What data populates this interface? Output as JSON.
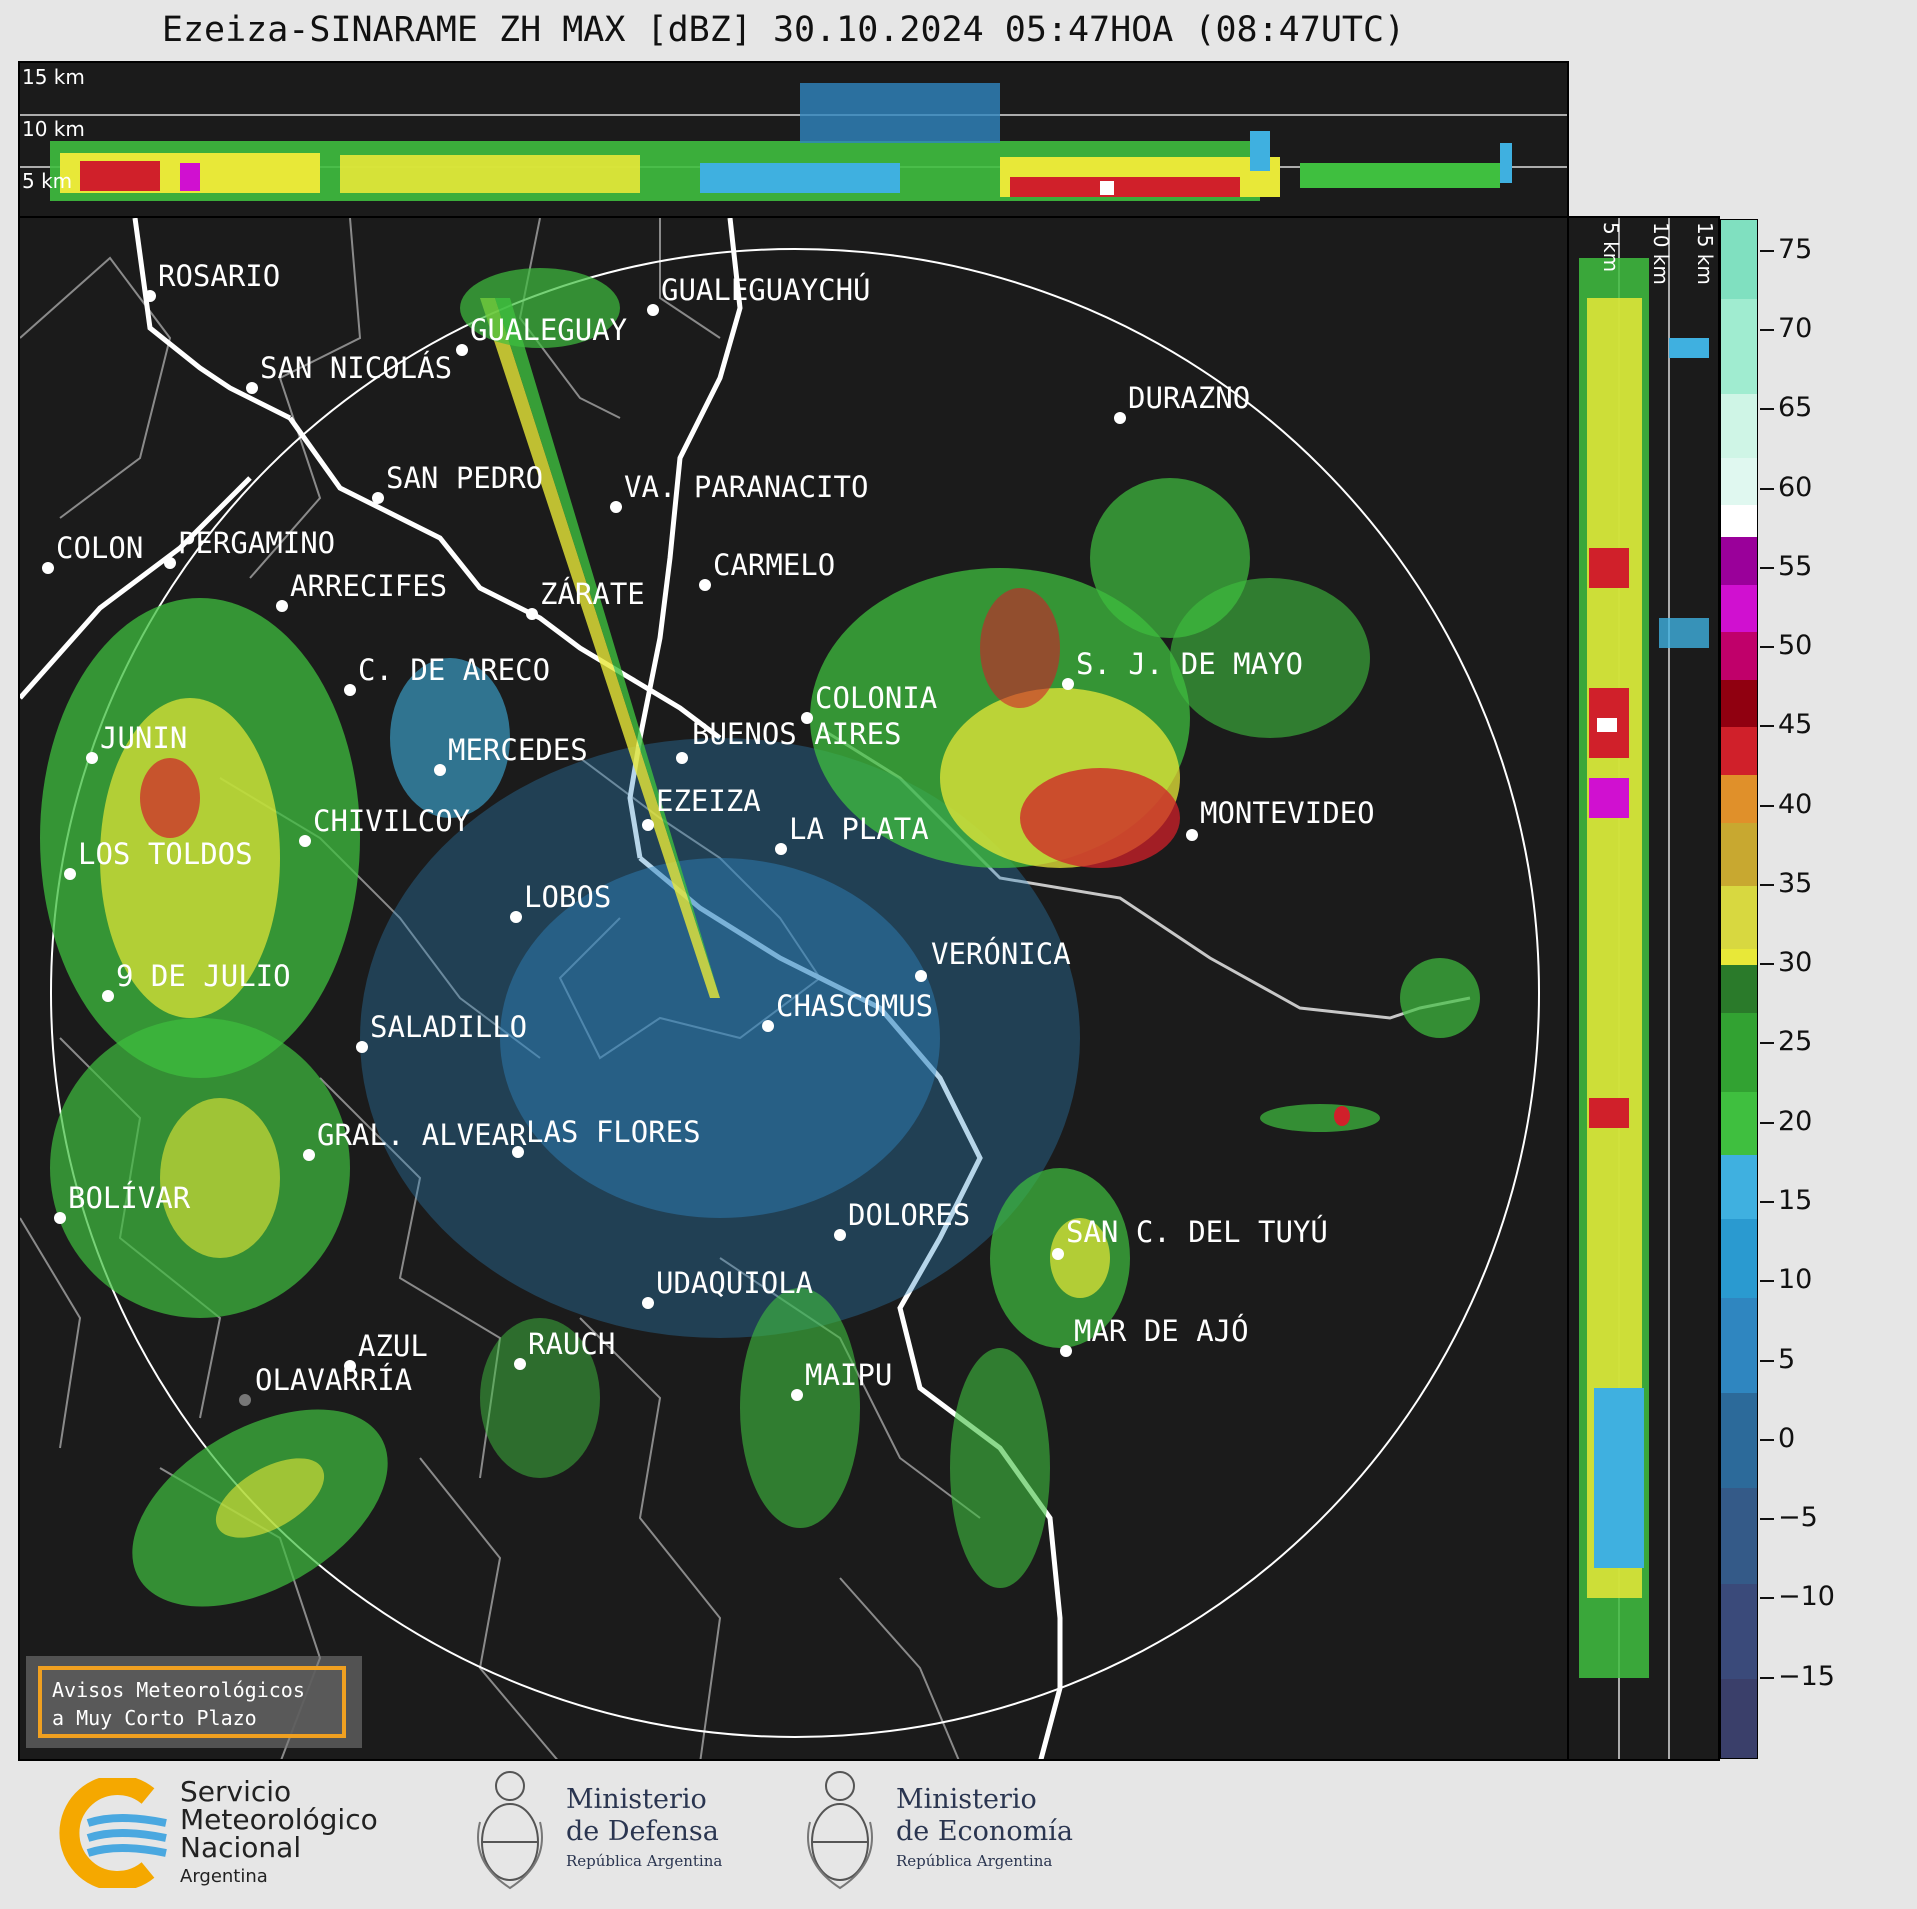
{
  "title": "Ezeiza-SINARAME ZH MAX [dBZ] 30.10.2024 05:47HOA (08:47UTC)",
  "top_panel": {
    "levels": [
      "15 km",
      "10 km",
      "5 km"
    ]
  },
  "side_panel": {
    "levels": [
      "5 km",
      "10 km",
      "15 km"
    ]
  },
  "colorbar": {
    "ticks": [
      "75",
      "70",
      "65",
      "60",
      "55",
      "50",
      "45",
      "40",
      "35",
      "30",
      "25",
      "20",
      "15",
      "10",
      "5",
      "0",
      "−5",
      "−10",
      "−15"
    ],
    "range_dbz": [
      -20,
      77
    ],
    "colors": {
      "low": "#3a3f6a",
      "mid_blue": "#2f86c0",
      "light_blue": "#3fb0e0",
      "green": "#3fbf3f",
      "dark_green": "#2a7a2a",
      "yellow": "#e8e838",
      "orange": "#e0902a",
      "red": "#d0202a",
      "dark_red": "#900010",
      "magenta": "#d010d0",
      "white": "#ffffff",
      "teal": "#80e0c0"
    }
  },
  "map": {
    "cities": [
      {
        "name": "ROSARIO"
      },
      {
        "name": "GUALEGUAYCHÚ"
      },
      {
        "name": "GUALEGUAY"
      },
      {
        "name": "SAN NICOLÁS"
      },
      {
        "name": "DURAZNO"
      },
      {
        "name": "SAN PEDRO"
      },
      {
        "name": "VA. PARANACITO"
      },
      {
        "name": "COLON"
      },
      {
        "name": "PERGAMINO"
      },
      {
        "name": "CARMELO"
      },
      {
        "name": "ARRECIFES"
      },
      {
        "name": "ZÁRATE"
      },
      {
        "name": "S. J. DE MAYO"
      },
      {
        "name": "C. DE ARECO"
      },
      {
        "name": "COLONIA"
      },
      {
        "name": "BUENOS AIRES"
      },
      {
        "name": "JUNIN"
      },
      {
        "name": "MERCEDES"
      },
      {
        "name": "EZEIZA"
      },
      {
        "name": "MONTEVIDEO"
      },
      {
        "name": "CHIVILCOY"
      },
      {
        "name": "LA PLATA"
      },
      {
        "name": "LOS TOLDOS"
      },
      {
        "name": "LOBOS"
      },
      {
        "name": "VERÓNICA"
      },
      {
        "name": "9 DE JULIO"
      },
      {
        "name": "CHASCOMUS"
      },
      {
        "name": "SALADILLO"
      },
      {
        "name": "GRAL. ALVEAR"
      },
      {
        "name": "LAS FLORES"
      },
      {
        "name": "BOLÍVAR"
      },
      {
        "name": "DOLORES"
      },
      {
        "name": "SAN C. DEL TUYÚ"
      },
      {
        "name": "UDAQUIOLA"
      },
      {
        "name": "MAR DE AJÓ"
      },
      {
        "name": "AZUL"
      },
      {
        "name": "RAUCH"
      },
      {
        "name": "OLAVARRÍA"
      },
      {
        "name": "MAIPU"
      }
    ]
  },
  "alert_box": {
    "line1": "Avisos Meteorológicos",
    "line2": "a Muy Corto Plazo"
  },
  "logos": {
    "smn": {
      "line1": "Servicio",
      "line2": "Meteorológico",
      "line3": "Nacional",
      "line4": "Argentina"
    },
    "defensa": {
      "line1": "Ministerio",
      "line2": "de Defensa",
      "line3": "República Argentina"
    },
    "economia": {
      "line1": "Ministerio",
      "line2": "de Economía",
      "line3": "República Argentina"
    }
  }
}
